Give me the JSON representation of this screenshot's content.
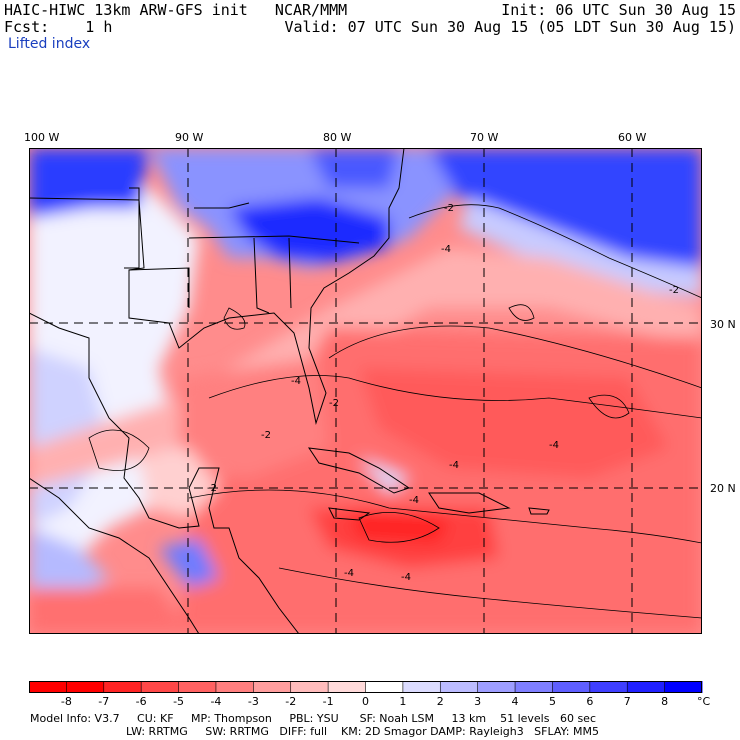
{
  "header": {
    "title": "HAIC-HIWC 13km ARW-GFS init   NCAR/MMM",
    "forecast": "Fcst:    1 h",
    "field": "Lifted index",
    "init": "Init: 06 UTC Sun 30 Aug 15",
    "valid": "Valid: 07 UTC Sun 30 Aug 15 (05 LDT Sun 30 Aug 15)"
  },
  "map": {
    "longitude_labels": [
      "100 W",
      "90 W",
      "80 W",
      "70 W",
      "60 W"
    ],
    "latitude_labels": [
      "30 N",
      "20 N"
    ],
    "contour_labels": [
      "-2",
      "-2",
      "-2",
      "-4",
      "-4",
      "-4",
      "-4",
      "-4",
      "-4",
      "-4",
      "-2",
      "-2"
    ]
  },
  "colorbar": {
    "tick_labels": [
      "-8",
      "-7",
      "-6",
      "-5",
      "-4",
      "-3",
      "-2",
      "-1",
      "0",
      "1",
      "2",
      "3",
      "4",
      "5",
      "6",
      "7",
      "8"
    ],
    "unit": "°C",
    "colors": [
      "#ff0000",
      "#ff2424",
      "#ff4848",
      "#ff6262",
      "#ff7f7f",
      "#ff9e9e",
      "#ffbcbc",
      "#ffdada",
      "#ffffff",
      "#dcdcff",
      "#bcbcff",
      "#9e9eff",
      "#7f7fff",
      "#5f5fff",
      "#3f3fff",
      "#2020ff",
      "#0000ff"
    ]
  },
  "footer": {
    "line1": "Model Info: V3.7     CU: KF     MP: Thompson     PBL: YSU      SF: Noah LSM     13 km    51 levels   60 sec",
    "line2": "LW: RRTMG     SW: RRTMG   DIFF: full    KM: 2D Smagor DAMP: Rayleigh3   SFLAY: MM5"
  }
}
